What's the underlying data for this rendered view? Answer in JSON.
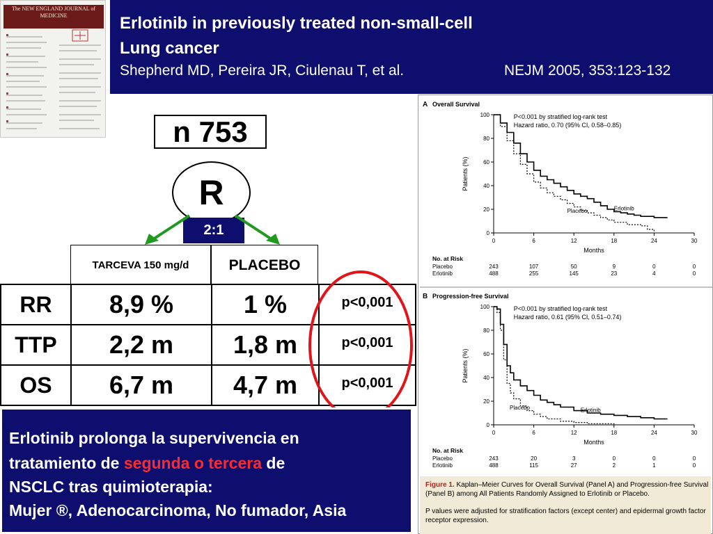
{
  "header": {
    "title_line1": "Erlotinib in previously treated non-small-cell",
    "title_line2": "Lung cancer",
    "authors": "Shepherd MD, Pereira JR, Ciulenau T, et al.",
    "journal": "NEJM 2005, 353:123-132"
  },
  "thumbnail": {
    "title": "The NEW ENGLAND JOURNAL of MEDICINE"
  },
  "design": {
    "n_label": "n 753",
    "randomization": "R",
    "ratio": "2:1",
    "arm_treatment": "TARCEVA 150 mg/d",
    "arm_control": "PLACEBO"
  },
  "results": [
    {
      "label": "RR",
      "treatment": "8,9 %",
      "placebo": "1 %",
      "p": "p<0,001"
    },
    {
      "label": "TTP",
      "treatment": "2,2 m",
      "placebo": "1,8 m",
      "p": "p<0,001"
    },
    {
      "label": "OS",
      "treatment": "6,7 m",
      "placebo": "4,7 m",
      "p": "p<0,001"
    }
  ],
  "conclusion": {
    "line1": "Erlotinib prolonga la supervivencia en",
    "line2_pre": "tratamiento de ",
    "line2_highlight": "segunda o tercera",
    "line2_post": " de",
    "line3": "NSCLC tras quimioterapia:",
    "line4": "Mujer ®, Adenocarcinoma, No fumador, Asia"
  },
  "colors": {
    "navy": "#0e0e6e",
    "highlight_red": "#ff2a2a",
    "ellipse_red": "#e1141a",
    "arrow_green": "#1f9a1f",
    "caption_bg": "#f1ead6"
  },
  "figure": {
    "caption_label": "Figure 1.",
    "caption_text": "Kaplan–Meier Curves for Overall Survival (Panel A) and Progression-free Survival (Panel B) among All Patients Randomly Assigned to Erlotinib or Placebo.",
    "caption_note": "P values were adjusted for stratification factors (except center) and epidermal growth factor receptor expression."
  },
  "chart_data": [
    {
      "type": "line",
      "title": "Overall Survival",
      "panel": "A",
      "stat_line1": "P<0.001 by stratified log-rank test",
      "stat_line2": "Hazard ratio, 0.70 (95% CI, 0.58–0.85)",
      "xlabel": "Months",
      "ylabel": "Patients (%)",
      "xlim": [
        0,
        30
      ],
      "ylim": [
        0,
        100
      ],
      "xticks": [
        0,
        6,
        12,
        18,
        24,
        30
      ],
      "yticks": [
        0,
        20,
        40,
        60,
        80,
        100
      ],
      "series": [
        {
          "name": "Erlotinib",
          "style": "solid",
          "x": [
            0,
            1,
            2,
            3,
            4,
            5,
            6,
            7,
            8,
            9,
            10,
            11,
            12,
            13,
            14,
            15,
            16,
            17,
            18,
            19,
            20,
            21,
            22,
            24,
            26
          ],
          "y": [
            100,
            93,
            85,
            76,
            67,
            60,
            53,
            48,
            45,
            42,
            39,
            36,
            33,
            31,
            29,
            26,
            23,
            20,
            18,
            17,
            16,
            15,
            14,
            13,
            13
          ]
        },
        {
          "name": "Placebo",
          "style": "dashed",
          "x": [
            0,
            1,
            2,
            3,
            4,
            5,
            6,
            7,
            8,
            9,
            10,
            11,
            12,
            13,
            14,
            15,
            16,
            17,
            18,
            20,
            22,
            23,
            24
          ],
          "y": [
            100,
            90,
            78,
            67,
            58,
            50,
            43,
            38,
            34,
            31,
            28,
            25,
            22,
            19,
            17,
            15,
            13,
            11,
            9,
            7,
            6,
            3,
            1
          ]
        }
      ],
      "risk_table": {
        "header": "No. at Risk",
        "rows": [
          {
            "label": "Placebo",
            "values": [
              "243",
              "107",
              "50",
              "9",
              "0",
              "0"
            ]
          },
          {
            "label": "Erlotinib",
            "values": [
              "488",
              "255",
              "145",
              "23",
              "4",
              "0"
            ]
          }
        ]
      }
    },
    {
      "type": "line",
      "title": "Progression-free Survival",
      "panel": "B",
      "stat_line1": "P<0.001 by stratified log-rank test",
      "stat_line2": "Hazard ratio, 0.61 (95% CI, 0.51–0.74)",
      "xlabel": "Months",
      "ylabel": "Patients (%)",
      "xlim": [
        0,
        30
      ],
      "ylim": [
        0,
        100
      ],
      "xticks": [
        0,
        6,
        12,
        18,
        24,
        30
      ],
      "yticks": [
        0,
        20,
        40,
        60,
        80,
        100
      ],
      "series": [
        {
          "name": "Erlotinib",
          "style": "solid",
          "x": [
            0,
            0.5,
            1,
            1.5,
            2,
            2.5,
            3,
            4,
            5,
            6,
            7,
            8,
            9,
            10,
            12,
            14,
            16,
            18,
            20,
            22,
            24,
            26
          ],
          "y": [
            100,
            98,
            85,
            68,
            50,
            44,
            38,
            33,
            29,
            25,
            21,
            19,
            17,
            15,
            12,
            10,
            9,
            8,
            7,
            6,
            5,
            5
          ]
        },
        {
          "name": "Placebo",
          "style": "dashed",
          "x": [
            0,
            0.5,
            1,
            1.5,
            2,
            2.5,
            3,
            4,
            5,
            6,
            7,
            8,
            10,
            12,
            14,
            16,
            18
          ],
          "y": [
            100,
            95,
            80,
            55,
            35,
            27,
            22,
            16,
            12,
            9,
            7,
            5,
            3,
            2,
            1,
            1,
            0
          ]
        }
      ],
      "risk_table": {
        "header": "No. at Risk",
        "rows": [
          {
            "label": "Placebo",
            "values": [
              "243",
              "20",
              "3",
              "0",
              "0",
              "0"
            ]
          },
          {
            "label": "Erlotinib",
            "values": [
              "488",
              "115",
              "27",
              "2",
              "1",
              "0"
            ]
          }
        ]
      }
    }
  ]
}
